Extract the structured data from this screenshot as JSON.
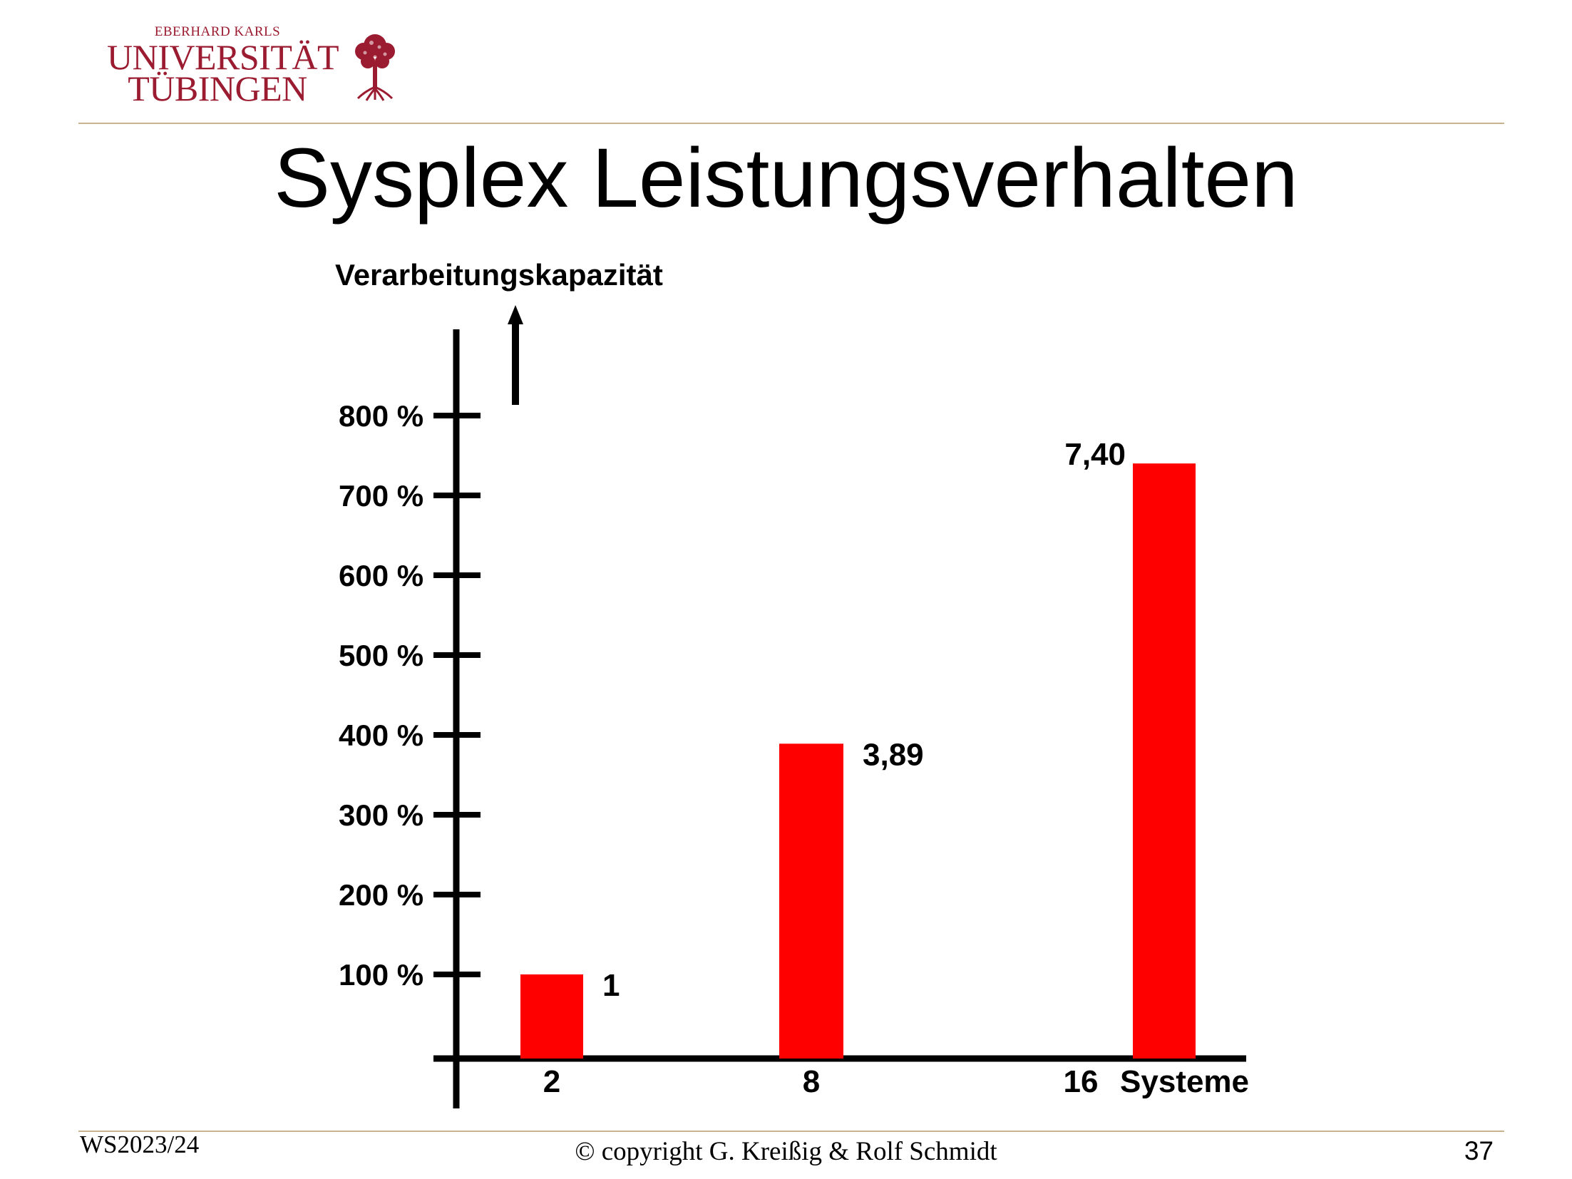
{
  "header": {
    "logo_small": "EBERHARD KARLS",
    "logo_line1": "UNIVERSITÄT",
    "logo_line2": "TÜBINGEN"
  },
  "slide": {
    "title": "Sysplex Leistungsverhalten"
  },
  "chart_data": {
    "type": "bar",
    "ylabel": "Verarbeitungskapazität",
    "xlabel": "Systeme",
    "categories": [
      "2",
      "8",
      "16"
    ],
    "values": [
      1,
      3.89,
      7.4
    ],
    "value_labels": [
      "1",
      "3,89",
      "7,40"
    ],
    "y_ticks": [
      "100 %",
      "200 %",
      "300 %",
      "400 %",
      "500 %",
      "600 %",
      "700 %",
      "800 %"
    ],
    "ylim": [
      0,
      8
    ],
    "bar_color": "#ff0000",
    "grid": false,
    "legend": "none"
  },
  "footer": {
    "semester": "WS2023/24",
    "copyright": "© copyright G. Kreißig & Rolf Schmidt",
    "page_number": "37"
  },
  "colors": {
    "logo": "#9b1b30",
    "rule": "#c9b38f",
    "bars": "#ff0000"
  }
}
